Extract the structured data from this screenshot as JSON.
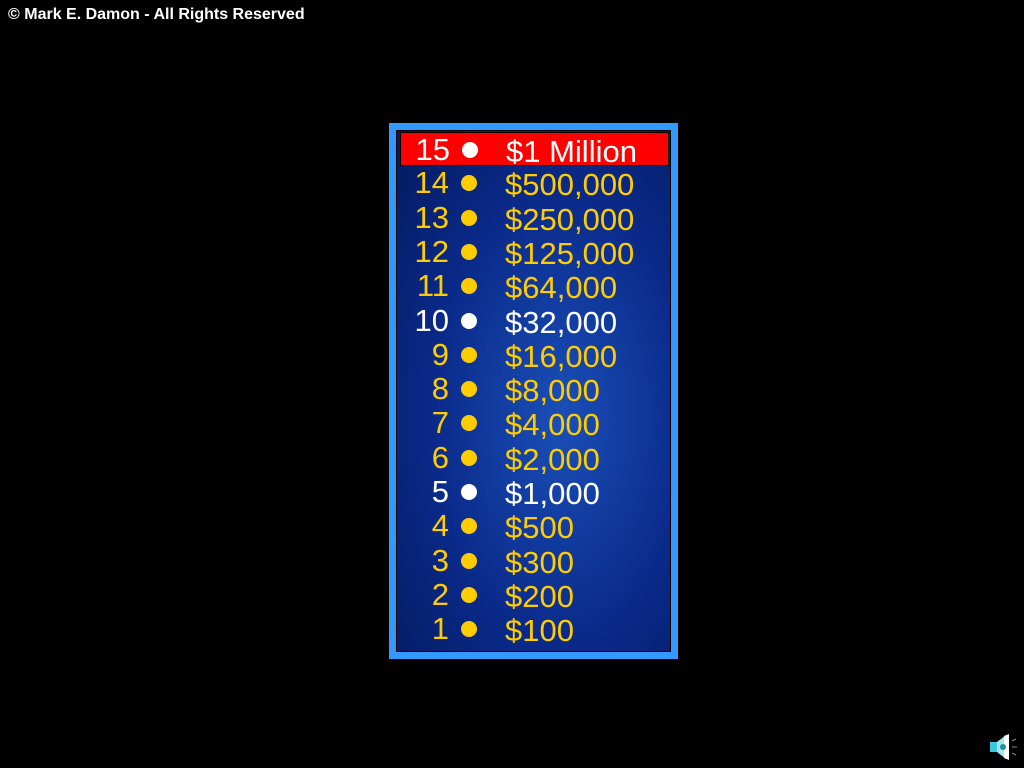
{
  "copyright": "© Mark E. Damon - All Rights Reserved",
  "colors": {
    "normal": "#ffcc00",
    "milestone": "#ffffff",
    "highlight_bg": "#ff0000",
    "border": "#3399ff"
  },
  "ladder": [
    {
      "level": "15",
      "amount": "$1 Million",
      "type": "current"
    },
    {
      "level": "14",
      "amount": "$500,000",
      "type": "normal"
    },
    {
      "level": "13",
      "amount": "$250,000",
      "type": "normal"
    },
    {
      "level": "12",
      "amount": "$125,000",
      "type": "normal"
    },
    {
      "level": "11",
      "amount": "$64,000",
      "type": "normal"
    },
    {
      "level": "10",
      "amount": "$32,000",
      "type": "milestone"
    },
    {
      "level": "9",
      "amount": "$16,000",
      "type": "normal"
    },
    {
      "level": "8",
      "amount": "$8,000",
      "type": "normal"
    },
    {
      "level": "7",
      "amount": "$4,000",
      "type": "normal"
    },
    {
      "level": "6",
      "amount": "$2,000",
      "type": "normal"
    },
    {
      "level": "5",
      "amount": "$1,000",
      "type": "milestone"
    },
    {
      "level": "4",
      "amount": "$500",
      "type": "normal"
    },
    {
      "level": "3",
      "amount": "$300",
      "type": "normal"
    },
    {
      "level": "2",
      "amount": "$200",
      "type": "normal"
    },
    {
      "level": "1",
      "amount": "$100",
      "type": "normal"
    }
  ],
  "icons": {
    "sound": "speaker-icon"
  }
}
